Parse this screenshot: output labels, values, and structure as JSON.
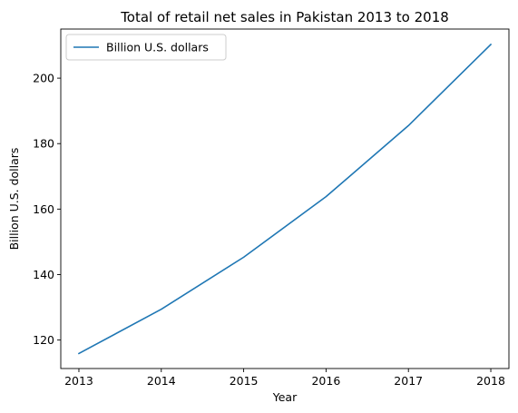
{
  "chart_data": {
    "type": "line",
    "title": "Total of retail net sales in Pakistan 2013 to 2018",
    "xlabel": "Year",
    "ylabel": "Billion U.S. dollars",
    "x": [
      2013,
      2014,
      2015,
      2016,
      2017,
      2018
    ],
    "x_ticks": [
      "2013",
      "2014",
      "2015",
      "2016",
      "2017",
      "2018"
    ],
    "y_ticks": [
      120,
      140,
      160,
      180,
      200
    ],
    "ylim": [
      111.3,
      215
    ],
    "series": [
      {
        "name": "Billion U.S. dollars",
        "values": [
          115.9,
          129.4,
          145.3,
          163.8,
          185.5,
          210.3
        ],
        "color": "#1f77b4"
      }
    ],
    "legend": {
      "placement": "top-left"
    },
    "grid": false
  }
}
